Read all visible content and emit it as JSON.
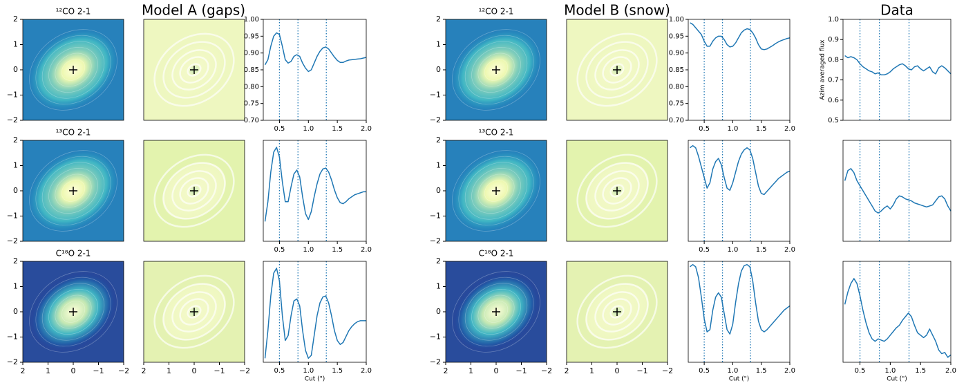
{
  "group_titles": [
    "Model A (gaps)",
    "Model B (snow)",
    "Data"
  ],
  "map_titles": [
    "¹²CO 2-1",
    "¹³CO 2-1",
    "C¹⁸O 2-1"
  ],
  "map_axes": {
    "xlim": [
      2,
      -2
    ],
    "ylim": [
      -2,
      2
    ],
    "xticks": [
      2,
      1,
      0,
      {
        "value": -1,
        "label": "−1"
      },
      {
        "value": -2,
        "label": "−2"
      }
    ],
    "yticks": [
      2,
      1,
      0,
      {
        "value": -1,
        "label": "−1"
      },
      {
        "value": -2,
        "label": "−2"
      }
    ]
  },
  "chart_data": [
    {
      "type": "line",
      "x": [
        0.25,
        0.3,
        0.35,
        0.4,
        0.45,
        0.5,
        0.55,
        0.6,
        0.65,
        0.7,
        0.75,
        0.8,
        0.85,
        0.9,
        0.95,
        1,
        1.05,
        1.1,
        1.15,
        1.2,
        1.25,
        1.3,
        1.35,
        1.4,
        1.45,
        1.5,
        1.55,
        1.6,
        1.65,
        1.7,
        1.75,
        1.8,
        1.85,
        1.9,
        1.95,
        2
      ],
      "series": [
        {
          "color": "#1f77b4",
          "values": [
            0.865,
            0.88,
            0.92,
            0.95,
            0.96,
            0.955,
            0.92,
            0.88,
            0.87,
            0.875,
            0.89,
            0.895,
            0.89,
            0.87,
            0.855,
            0.845,
            0.85,
            0.87,
            0.89,
            0.905,
            0.915,
            0.918,
            0.912,
            0.9,
            0.888,
            0.878,
            0.872,
            0.872,
            0.876,
            0.879,
            0.88,
            0.881,
            0.882,
            0.883,
            0.885,
            0.887
          ]
        }
      ],
      "xlim": [
        0.22,
        2.0
      ],
      "ylim": [
        0.7,
        1.0
      ],
      "xticks": [
        0.5,
        {
          "value": 1,
          "label": "1.0"
        },
        1.5,
        {
          "value": 2,
          "label": "2.0"
        }
      ],
      "yticks": [
        {
          "value": 0.7,
          "label": "0.70"
        },
        0.75,
        {
          "value": 0.8,
          "label": "0.80"
        },
        0.85,
        {
          "value": 0.9,
          "label": "0.90"
        },
        0.95,
        {
          "value": 1,
          "label": "1.00"
        }
      ],
      "vlines": [
        0.5,
        0.82,
        1.31
      ]
    },
    {
      "type": "line",
      "x": [
        0.25,
        0.3,
        0.35,
        0.4,
        0.45,
        0.5,
        0.55,
        0.6,
        0.65,
        0.7,
        0.75,
        0.8,
        0.85,
        0.9,
        0.95,
        1,
        1.05,
        1.1,
        1.15,
        1.2,
        1.25,
        1.3,
        1.35,
        1.4,
        1.45,
        1.5,
        1.55,
        1.6,
        1.65,
        1.7,
        1.75,
        1.8,
        1.85,
        1.9,
        1.95,
        2
      ],
      "series": [
        {
          "color": "#1f77b4",
          "values": [
            0.2,
            0.4,
            0.7,
            0.9,
            0.95,
            0.85,
            0.6,
            0.4,
            0.4,
            0.55,
            0.68,
            0.72,
            0.65,
            0.45,
            0.28,
            0.22,
            0.3,
            0.45,
            0.58,
            0.68,
            0.73,
            0.74,
            0.7,
            0.62,
            0.52,
            0.44,
            0.39,
            0.38,
            0.4,
            0.43,
            0.45,
            0.47,
            0.48,
            0.49,
            0.5,
            0.5
          ]
        }
      ],
      "xlim": [
        0.22,
        2.0
      ],
      "ylim": [
        0,
        1.02
      ],
      "xticks": [
        0.5,
        {
          "value": 1,
          "label": "1.0"
        },
        1.5,
        {
          "value": 2,
          "label": "2.0"
        }
      ],
      "vlines": [
        0.5,
        0.82,
        1.31
      ]
    },
    {
      "type": "line",
      "x": [
        0.25,
        0.3,
        0.35,
        0.4,
        0.45,
        0.5,
        0.55,
        0.6,
        0.65,
        0.7,
        0.75,
        0.8,
        0.85,
        0.9,
        0.95,
        1,
        1.05,
        1.1,
        1.15,
        1.2,
        1.25,
        1.3,
        1.35,
        1.4,
        1.45,
        1.5,
        1.55,
        1.6,
        1.65,
        1.7,
        1.75,
        1.8,
        1.85,
        1.9,
        1.95,
        2
      ],
      "series": [
        {
          "color": "#1f77b4",
          "values": [
            0.02,
            0.3,
            0.65,
            0.88,
            0.93,
            0.8,
            0.45,
            0.2,
            0.25,
            0.45,
            0.6,
            0.62,
            0.55,
            0.3,
            0.1,
            0.02,
            0.05,
            0.25,
            0.45,
            0.58,
            0.64,
            0.65,
            0.58,
            0.45,
            0.3,
            0.2,
            0.16,
            0.18,
            0.24,
            0.3,
            0.34,
            0.37,
            0.39,
            0.4,
            0.4,
            0.4
          ]
        }
      ],
      "xlim": [
        0.22,
        2.0
      ],
      "ylim": [
        -0.02,
        1.0
      ],
      "xticks": [
        0.5,
        {
          "value": 1,
          "label": "1.0"
        },
        1.5,
        {
          "value": 2,
          "label": "2.0"
        }
      ],
      "xlabel": "Cut (\")",
      "vlines": [
        0.5,
        0.82,
        1.31
      ]
    },
    {
      "type": "line",
      "x": [
        0.25,
        0.3,
        0.35,
        0.4,
        0.45,
        0.5,
        0.55,
        0.6,
        0.65,
        0.7,
        0.75,
        0.8,
        0.85,
        0.9,
        0.95,
        1,
        1.05,
        1.1,
        1.15,
        1.2,
        1.25,
        1.3,
        1.35,
        1.4,
        1.45,
        1.5,
        1.55,
        1.6,
        1.65,
        1.7,
        1.75,
        1.8,
        1.85,
        1.9,
        1.95,
        2
      ],
      "series": [
        {
          "color": "#1f77b4",
          "values": [
            0.99,
            0.985,
            0.975,
            0.965,
            0.955,
            0.935,
            0.92,
            0.92,
            0.935,
            0.945,
            0.95,
            0.95,
            0.94,
            0.925,
            0.918,
            0.92,
            0.93,
            0.945,
            0.96,
            0.968,
            0.972,
            0.97,
            0.96,
            0.945,
            0.925,
            0.912,
            0.91,
            0.912,
            0.917,
            0.922,
            0.928,
            0.933,
            0.937,
            0.94,
            0.943,
            0.945
          ]
        }
      ],
      "xlim": [
        0.22,
        2.0
      ],
      "ylim": [
        0.7,
        1.0
      ],
      "xticks": [
        0.5,
        {
          "value": 1,
          "label": "1.0"
        },
        1.5,
        {
          "value": 2,
          "label": "2.0"
        }
      ],
      "yticks": [
        {
          "value": 0.7,
          "label": "0.70"
        },
        0.75,
        {
          "value": 0.8,
          "label": "0.80"
        },
        0.85,
        {
          "value": 0.9,
          "label": "0.90"
        },
        0.95,
        {
          "value": 1,
          "label": "1.00"
        }
      ],
      "vlines": [
        0.5,
        0.82,
        1.31
      ]
    },
    {
      "type": "line",
      "x": [
        0.25,
        0.3,
        0.35,
        0.4,
        0.45,
        0.5,
        0.55,
        0.6,
        0.65,
        0.7,
        0.75,
        0.8,
        0.85,
        0.9,
        0.95,
        1,
        1.05,
        1.1,
        1.15,
        1.2,
        1.25,
        1.3,
        1.35,
        1.4,
        1.45,
        1.5,
        1.55,
        1.6,
        1.65,
        1.7,
        1.75,
        1.8,
        1.85,
        1.9,
        1.95,
        2
      ],
      "series": [
        {
          "color": "#1f77b4",
          "values": [
            0.88,
            0.9,
            0.88,
            0.8,
            0.7,
            0.6,
            0.5,
            0.55,
            0.68,
            0.75,
            0.78,
            0.72,
            0.6,
            0.5,
            0.48,
            0.55,
            0.65,
            0.75,
            0.82,
            0.86,
            0.88,
            0.86,
            0.78,
            0.65,
            0.52,
            0.45,
            0.44,
            0.47,
            0.5,
            0.53,
            0.56,
            0.59,
            0.61,
            0.63,
            0.65,
            0.66
          ]
        }
      ],
      "xlim": [
        0.22,
        2.0
      ],
      "ylim": [
        0,
        0.95
      ],
      "xticks": [
        0.5,
        {
          "value": 1,
          "label": "1.0"
        },
        1.5,
        {
          "value": 2,
          "label": "2.0"
        }
      ],
      "vlines": [
        0.5,
        0.82,
        1.31
      ]
    },
    {
      "type": "line",
      "x": [
        0.25,
        0.3,
        0.35,
        0.4,
        0.45,
        0.5,
        0.55,
        0.6,
        0.65,
        0.7,
        0.75,
        0.8,
        0.85,
        0.9,
        0.95,
        1,
        1.05,
        1.1,
        1.15,
        1.2,
        1.25,
        1.3,
        1.35,
        1.4,
        1.45,
        1.5,
        1.55,
        1.6,
        1.65,
        1.7,
        1.75,
        1.8,
        1.85,
        1.9,
        1.95,
        2
      ],
      "series": [
        {
          "color": "#1f77b4",
          "values": [
            0.88,
            0.9,
            0.88,
            0.78,
            0.6,
            0.4,
            0.28,
            0.3,
            0.48,
            0.6,
            0.64,
            0.6,
            0.45,
            0.3,
            0.26,
            0.35,
            0.55,
            0.72,
            0.84,
            0.89,
            0.9,
            0.88,
            0.75,
            0.55,
            0.38,
            0.3,
            0.28,
            0.3,
            0.33,
            0.36,
            0.39,
            0.42,
            0.45,
            0.48,
            0.5,
            0.52
          ]
        }
      ],
      "xlim": [
        0.22,
        2.0
      ],
      "ylim": [
        0,
        0.93
      ],
      "xticks": [
        0.5,
        {
          "value": 1,
          "label": "1.0"
        },
        1.5,
        {
          "value": 2,
          "label": "2.0"
        }
      ],
      "xlabel": "Cut (\")",
      "vlines": [
        0.5,
        0.82,
        1.31
      ]
    },
    {
      "type": "line",
      "x": [
        0.25,
        0.3,
        0.35,
        0.4,
        0.45,
        0.5,
        0.55,
        0.6,
        0.65,
        0.7,
        0.75,
        0.8,
        0.85,
        0.9,
        0.95,
        1,
        1.05,
        1.1,
        1.15,
        1.2,
        1.25,
        1.3,
        1.35,
        1.4,
        1.45,
        1.5,
        1.55,
        1.6,
        1.65,
        1.7,
        1.75,
        1.8,
        1.85,
        1.9,
        1.95,
        2
      ],
      "series": [
        {
          "color": "#1f77b4",
          "values": [
            0.82,
            0.81,
            0.815,
            0.81,
            0.8,
            0.78,
            0.765,
            0.755,
            0.745,
            0.74,
            0.73,
            0.735,
            0.725,
            0.725,
            0.73,
            0.74,
            0.755,
            0.765,
            0.775,
            0.78,
            0.77,
            0.755,
            0.75,
            0.765,
            0.77,
            0.755,
            0.745,
            0.755,
            0.765,
            0.74,
            0.73,
            0.76,
            0.77,
            0.76,
            0.745,
            0.73
          ]
        }
      ],
      "xlim": [
        0.22,
        2.0
      ],
      "ylim": [
        0.5,
        1.0
      ],
      "yticks": [
        0.5,
        0.6,
        0.7,
        0.8,
        0.9,
        {
          "value": 1,
          "label": "1.0"
        }
      ],
      "ylabel": "Azim averaged flux",
      "vlines": [
        0.5,
        0.82,
        1.31
      ]
    },
    {
      "type": "line",
      "x": [
        0.25,
        0.3,
        0.35,
        0.4,
        0.45,
        0.5,
        0.55,
        0.6,
        0.65,
        0.7,
        0.75,
        0.8,
        0.85,
        0.9,
        0.95,
        1,
        1.05,
        1.1,
        1.15,
        1.2,
        1.25,
        1.3,
        1.35,
        1.4,
        1.45,
        1.5,
        1.55,
        1.6,
        1.65,
        1.7,
        1.75,
        1.8,
        1.85,
        1.9,
        1.95,
        2
      ],
      "series": [
        {
          "color": "#1f77b4",
          "values": [
            0.6,
            0.7,
            0.72,
            0.68,
            0.6,
            0.55,
            0.5,
            0.45,
            0.4,
            0.35,
            0.3,
            0.28,
            0.3,
            0.33,
            0.35,
            0.32,
            0.36,
            0.42,
            0.45,
            0.44,
            0.42,
            0.41,
            0.4,
            0.38,
            0.37,
            0.36,
            0.35,
            0.34,
            0.35,
            0.36,
            0.4,
            0.44,
            0.45,
            0.42,
            0.35,
            0.3
          ]
        }
      ],
      "xlim": [
        0.22,
        2.0
      ],
      "ylim": [
        0,
        1.0
      ],
      "vlines": [
        0.5,
        0.82,
        1.31
      ]
    },
    {
      "type": "line",
      "x": [
        0.25,
        0.3,
        0.35,
        0.4,
        0.45,
        0.5,
        0.55,
        0.6,
        0.65,
        0.7,
        0.75,
        0.8,
        0.85,
        0.9,
        0.95,
        1,
        1.05,
        1.1,
        1.15,
        1.2,
        1.25,
        1.3,
        1.35,
        1.4,
        1.45,
        1.5,
        1.55,
        1.6,
        1.65,
        1.7,
        1.75,
        1.8,
        1.85,
        1.9,
        1.95,
        2
      ],
      "series": [
        {
          "color": "#1f77b4",
          "values": [
            0.55,
            0.65,
            0.72,
            0.76,
            0.72,
            0.62,
            0.5,
            0.4,
            0.32,
            0.27,
            0.25,
            0.27,
            0.26,
            0.25,
            0.27,
            0.3,
            0.33,
            0.36,
            0.38,
            0.42,
            0.45,
            0.48,
            0.45,
            0.38,
            0.32,
            0.3,
            0.28,
            0.3,
            0.35,
            0.3,
            0.25,
            0.18,
            0.15,
            0.16,
            0.12,
            0.14
          ]
        }
      ],
      "xlim": [
        0.22,
        2.0
      ],
      "ylim": [
        0.08,
        0.9
      ],
      "xticks": [
        0.5,
        {
          "value": 1,
          "label": "1.0"
        },
        1.5,
        {
          "value": 2,
          "label": "2.0"
        }
      ],
      "xlabel": "Cut (\")",
      "vlines": [
        0.5,
        0.82,
        1.31
      ]
    }
  ]
}
